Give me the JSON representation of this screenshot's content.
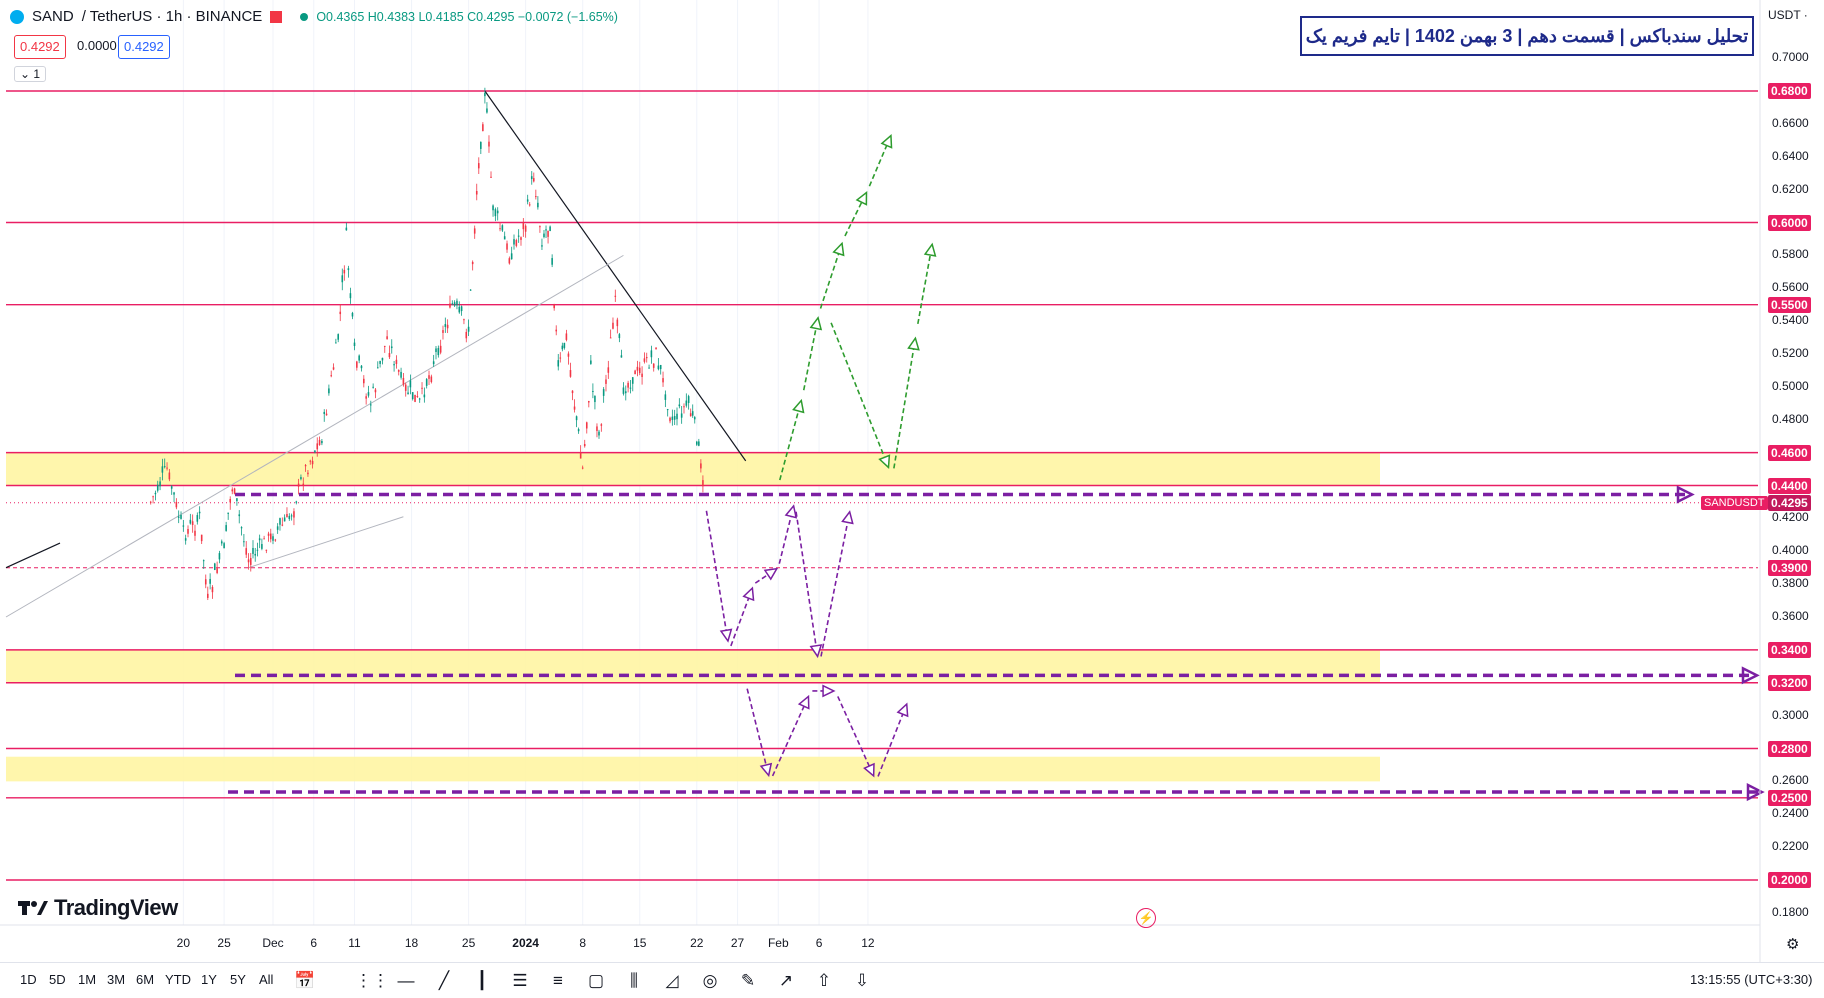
{
  "header": {
    "symbol": "SAND",
    "pair": "/ TetherUS · 1h · BINANCE",
    "ohlc": "O0.4365 H0.4383 L0.4185 C0.4295 −0.0072 (−1.65%)",
    "bid": "0.4292",
    "spread": "0.0000",
    "ask": "0.4292",
    "collapse_label": "1"
  },
  "title": "تحلیل سندباکس | قسمت دهم | 3 بهمن 1402 | تایم فریم یک",
  "currency": "USDT ·",
  "brand": "TradingView",
  "symbol_tag": "SANDUSDT",
  "clock": "13:15:55 (UTC+3:30)",
  "range_buttons": [
    "1D",
    "5D",
    "1M",
    "3M",
    "6M",
    "YTD",
    "1Y",
    "5Y",
    "All"
  ],
  "toolbar_icons": [
    "grip-icon",
    "horizontal-line-icon",
    "trendline-icon",
    "vertical-line-icon",
    "parallel-channel-icon",
    "fib-icon",
    "rectangle-icon",
    "candles-icon",
    "triangle-icon",
    "circle-icon",
    "brush-icon",
    "path-icon",
    "arrow-up-icon",
    "arrow-down-icon"
  ],
  "colors": {
    "up": "#089981",
    "down": "#f23645",
    "level": "#e91e63",
    "zone": "#fff59d",
    "purple": "#7b1fa2",
    "green": "#2e9c2e"
  },
  "chart_data": {
    "type": "candlestick",
    "ylim": [
      0.17,
      0.71
    ],
    "y_ticks": [
      "0.7000",
      "0.6600",
      "0.6400",
      "0.6200",
      "0.5800",
      "0.5600",
      "0.5400",
      "0.5200",
      "0.5000",
      "0.4800",
      "0.4200",
      "0.4000",
      "0.3800",
      "0.3600",
      "0.3000",
      "0.2600",
      "0.2400",
      "0.2200",
      "0.1800"
    ],
    "x_ticks": [
      "20",
      "25",
      "Dec",
      "6",
      "11",
      "18",
      "25",
      "2024",
      "8",
      "15",
      "22",
      "27",
      "Feb",
      "6",
      "12"
    ],
    "levels": [
      {
        "value": 0.68,
        "label": "0.6800"
      },
      {
        "value": 0.6,
        "label": "0.6000"
      },
      {
        "value": 0.55,
        "label": "0.5500"
      },
      {
        "value": 0.46,
        "label": "0.4600"
      },
      {
        "value": 0.44,
        "label": "0.4400"
      },
      {
        "value": 0.39,
        "label": "0.3900",
        "dashed": true
      },
      {
        "value": 0.34,
        "label": "0.3400"
      },
      {
        "value": 0.32,
        "label": "0.3200"
      },
      {
        "value": 0.28,
        "label": "0.2800"
      },
      {
        "value": 0.25,
        "label": "0.2500"
      },
      {
        "value": 0.2,
        "label": "0.2000"
      }
    ],
    "last_price": {
      "value": 0.4295,
      "label": "0.4295"
    },
    "zones": [
      [
        0.44,
        0.46
      ],
      [
        0.32,
        0.34
      ],
      [
        0.26,
        0.275
      ]
    ],
    "price_path": [
      [
        "Nov 16",
        0.43
      ],
      [
        "Nov 18",
        0.45
      ],
      [
        "Nov 20",
        0.41
      ],
      [
        "Nov 22",
        0.42
      ],
      [
        "Nov 23",
        0.37
      ],
      [
        "Nov 25",
        0.405
      ],
      [
        "Nov 26",
        0.44
      ],
      [
        "Nov 28",
        0.395
      ],
      [
        "Dec 1",
        0.41
      ],
      [
        "Dec 3",
        0.42
      ],
      [
        "Dec 5",
        0.45
      ],
      [
        "Dec 7",
        0.47
      ],
      [
        "Dec 9",
        0.53
      ],
      [
        "Dec 10",
        0.59
      ],
      [
        "Dec 11",
        0.52
      ],
      [
        "Dec 13",
        0.49
      ],
      [
        "Dec 15",
        0.53
      ],
      [
        "Dec 17",
        0.5
      ],
      [
        "Dec 19",
        0.49
      ],
      [
        "Dec 21",
        0.52
      ],
      [
        "Dec 23",
        0.55
      ],
      [
        "Dec 25",
        0.535
      ],
      [
        "Dec 26",
        0.62
      ],
      [
        "Dec 27",
        0.68
      ],
      [
        "Dec 28",
        0.61
      ],
      [
        "Dec 30",
        0.58
      ],
      [
        "Jan 1",
        0.6
      ],
      [
        "Jan 2",
        0.63
      ],
      [
        "Jan 3",
        0.59
      ],
      [
        "Jan 4",
        0.6
      ],
      [
        "Jan 5",
        0.51
      ],
      [
        "Jan 6",
        0.53
      ],
      [
        "Jan 7",
        0.49
      ],
      [
        "Jan 8",
        0.45
      ],
      [
        "Jan 9",
        0.51
      ],
      [
        "Jan 10",
        0.47
      ],
      [
        "Jan 12",
        0.55
      ],
      [
        "Jan 13",
        0.5
      ],
      [
        "Jan 15",
        0.51
      ],
      [
        "Jan 17",
        0.52
      ],
      [
        "Jan 19",
        0.48
      ],
      [
        "Jan 21",
        0.49
      ],
      [
        "Jan 22",
        0.47
      ],
      [
        "Jan 23",
        0.43
      ]
    ],
    "projection_purple": [
      {
        "segments": [
          [
            "Jan 23",
            0.43
          ],
          [
            "Jan 26",
            0.34
          ],
          [
            "Jan 29",
            0.38
          ],
          [
            "Feb 1",
            0.39
          ],
          [
            "Feb 3",
            0.43
          ],
          [
            "Feb 6",
            0.33
          ],
          [
            "Feb 10",
            0.43
          ]
        ]
      },
      {
        "segments": [
          [
            "Jan 28",
            0.32
          ],
          [
            "Jan 31",
            0.26
          ],
          [
            "Feb 5",
            0.315
          ],
          [
            "Feb 8",
            0.315
          ],
          [
            "Feb 13",
            0.26
          ],
          [
            "Feb 17",
            0.31
          ]
        ]
      }
    ],
    "projection_green": [
      {
        "segments": [
          [
            "Feb 1",
            0.44
          ],
          [
            "Feb 4",
            0.495
          ],
          [
            "Feb 6",
            0.545
          ],
          [
            "Feb 9",
            0.59
          ],
          [
            "Feb 12",
            0.62
          ],
          [
            "Feb 15",
            0.655
          ]
        ]
      },
      {
        "segments": [
          [
            "Feb 7",
            0.545
          ],
          [
            "Feb 15",
            0.445
          ],
          [
            "Feb 18",
            0.535
          ],
          [
            "Feb 20",
            0.59
          ]
        ]
      }
    ]
  }
}
